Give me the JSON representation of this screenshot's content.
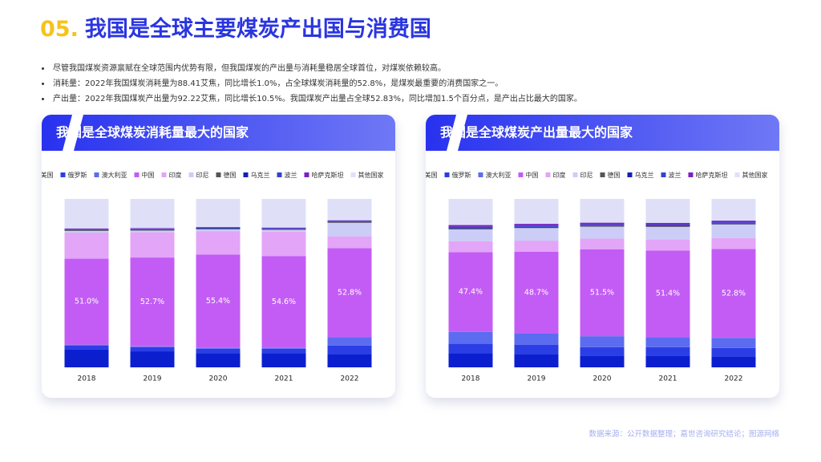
{
  "header": {
    "number": "05.",
    "title": "我国是全球主要煤炭产出国与消费国"
  },
  "bullets": [
    "尽管我国煤炭资源禀赋在全球范围内优势有限，但我国煤炭的产出量与消耗量稳居全球首位，对煤炭依赖较高。",
    "消耗量：2022年我国煤炭消耗量为88.41艾焦，同比增长1.0%，占全球煤炭消耗量的52.8%，是煤炭最重要的消费国家之一。",
    "产出量：2022年我国煤炭产出量为92.22艾焦，同比增长10.5%。我国煤炭产出量占全球52.83%，同比增加1.5个百分点，是产出占比最大的国家。"
  ],
  "source": "数据来源：公开数据整理；嘉世咨询研究结论；图源网络",
  "chart_data": [
    {
      "type": "stacked_bar",
      "title": "我国是全球煤炭消耗量最大的国家",
      "categories": [
        "2018",
        "2019",
        "2020",
        "2021",
        "2022"
      ],
      "ylim": [
        0,
        100
      ],
      "series": [
        {
          "name": "美国",
          "color": "#0b1fcf",
          "values": [
            10.5,
            9.5,
            8.5,
            8.5,
            8.0
          ]
        },
        {
          "name": "俄罗斯",
          "color": "#2b3ee6",
          "values": [
            2.5,
            2.5,
            2.5,
            2.5,
            5.0
          ]
        },
        {
          "name": "澳大利亚",
          "color": "#5b6cf0",
          "values": [
            0.5,
            0.5,
            0.5,
            0.5,
            5.0
          ]
        },
        {
          "name": "中国",
          "color": "#c35cf5",
          "values": [
            51.0,
            52.7,
            55.4,
            54.6,
            52.8
          ],
          "value_labels": [
            "51.0%",
            "52.7%",
            "55.4%",
            "54.6%",
            "52.8%"
          ]
        },
        {
          "name": "印度",
          "color": "#e2a5f7",
          "values": [
            15.5,
            15.0,
            14.0,
            14.5,
            7.0
          ]
        },
        {
          "name": "印尼",
          "color": "#cbcdf6",
          "values": [
            1.0,
            1.0,
            1.0,
            1.0,
            8.0
          ]
        },
        {
          "name": "德国",
          "color": "#555555",
          "values": [
            0.5,
            0.5,
            0.4,
            0.4,
            0.5
          ]
        },
        {
          "name": "乌克兰",
          "color": "#1222b2",
          "values": [
            0.3,
            0.3,
            0.3,
            0.3,
            0.3
          ]
        },
        {
          "name": "波兰",
          "color": "#3342d2",
          "values": [
            0.3,
            0.3,
            0.3,
            0.3,
            0.3
          ]
        },
        {
          "name": "哈萨克斯坦",
          "color": "#7a22c2",
          "values": [
            0.4,
            0.4,
            0.4,
            0.4,
            0.4
          ]
        },
        {
          "name": "其他国家",
          "color": "#dfe0f8",
          "values": [
            17.5,
            17.3,
            16.7,
            17.0,
            12.7
          ]
        }
      ]
    },
    {
      "type": "stacked_bar",
      "title": "我国是全球煤炭产出量最大的国家",
      "categories": [
        "2018",
        "2019",
        "2020",
        "2021",
        "2022"
      ],
      "ylim": [
        0,
        100
      ],
      "series": [
        {
          "name": "美国",
          "color": "#0b1fcf",
          "values": [
            8.5,
            8.0,
            7.0,
            7.0,
            6.5
          ]
        },
        {
          "name": "俄罗斯",
          "color": "#2b3ee6",
          "values": [
            5.5,
            5.5,
            5.0,
            5.0,
            5.0
          ]
        },
        {
          "name": "澳大利亚",
          "color": "#5b6cf0",
          "values": [
            7.0,
            6.5,
            6.5,
            6.0,
            6.0
          ]
        },
        {
          "name": "中国",
          "color": "#c35cf5",
          "values": [
            47.4,
            48.7,
            51.5,
            51.4,
            52.8
          ],
          "value_labels": [
            "47.4%",
            "48.7%",
            "51.5%",
            "51.4%",
            "52.8%"
          ]
        },
        {
          "name": "印度",
          "color": "#e2a5f7",
          "values": [
            6.5,
            6.5,
            6.5,
            6.5,
            6.5
          ]
        },
        {
          "name": "印尼",
          "color": "#cbcdf6",
          "values": [
            7.0,
            7.5,
            7.0,
            7.5,
            8.0
          ]
        },
        {
          "name": "德国",
          "color": "#555555",
          "values": [
            0.5,
            0.4,
            0.4,
            0.4,
            0.3
          ]
        },
        {
          "name": "乌克兰",
          "color": "#1222b2",
          "values": [
            0.3,
            0.3,
            0.3,
            0.3,
            0.3
          ]
        },
        {
          "name": "波兰",
          "color": "#3342d2",
          "values": [
            0.8,
            0.8,
            0.7,
            0.7,
            0.7
          ]
        },
        {
          "name": "哈萨克斯坦",
          "color": "#7a22c2",
          "values": [
            1.0,
            1.0,
            1.0,
            1.0,
            1.0
          ]
        },
        {
          "name": "其他国家",
          "color": "#dfe0f8",
          "values": [
            15.5,
            14.8,
            14.1,
            14.2,
            12.9
          ]
        }
      ]
    }
  ]
}
